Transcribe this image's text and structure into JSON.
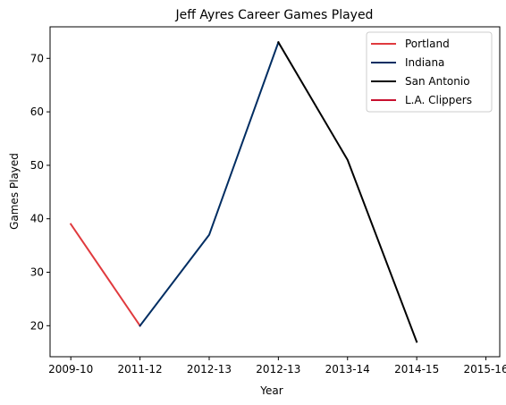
{
  "chart_data": {
    "type": "line",
    "title": "Jeff Ayres Career Games Played",
    "xlabel": "Year",
    "ylabel": "Games Played",
    "x_ticks": [
      "2009-10",
      "2011-12",
      "2012-13",
      "2012-13",
      "2013-14",
      "2014-15",
      "2015-16"
    ],
    "y_ticks": [
      20,
      30,
      40,
      50,
      60,
      70
    ],
    "xlim": [
      -0.3,
      6.2
    ],
    "ylim": [
      14.2,
      75.9
    ],
    "legend_position": "top-right",
    "grid": false,
    "series": [
      {
        "name": "Portland",
        "color": "#e03a3e",
        "points": [
          [
            0,
            39
          ],
          [
            1,
            20
          ]
        ]
      },
      {
        "name": "Indiana",
        "color": "#002d62",
        "points": [
          [
            1,
            20
          ],
          [
            2,
            37
          ],
          [
            3,
            73
          ]
        ]
      },
      {
        "name": "San Antonio",
        "color": "#000000",
        "points": [
          [
            3,
            73
          ],
          [
            4,
            51
          ],
          [
            5,
            17
          ]
        ]
      },
      {
        "name": "L.A. Clippers",
        "color": "#c8102e",
        "points": []
      }
    ]
  }
}
